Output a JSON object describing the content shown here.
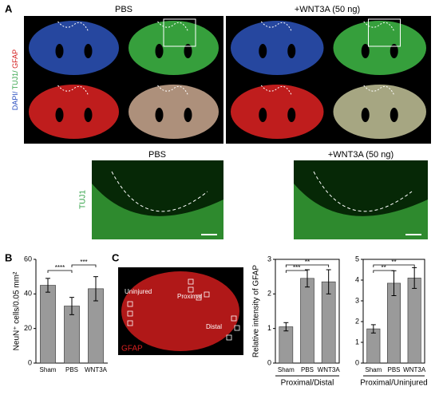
{
  "panel_a": {
    "label": "A",
    "titles": [
      "PBS",
      "+WNT3A (50 ng)"
    ],
    "stain_parts": [
      "DAPI/ ",
      "TUJ1/ ",
      "GFAP"
    ]
  },
  "panel_a_zoom": {
    "titles": [
      "PBS",
      "+WNT3A (50 ng)"
    ],
    "stain": "TUJ1"
  },
  "panel_b": {
    "label": "B"
  },
  "panel_c": {
    "label": "C",
    "stain": "GFAP",
    "regions": [
      "Uninjured",
      "Proximal",
      "Distal"
    ]
  },
  "chart_data": [
    {
      "type": "bar",
      "ylabel": "NeuN⁺ cells/0.05 mm²",
      "categories": [
        "Sham",
        "PBS",
        "WNT3A"
      ],
      "values": [
        45,
        33,
        43
      ],
      "errors": [
        4,
        5,
        7
      ],
      "color": "#9a9a9a",
      "ylim": [
        0,
        60
      ],
      "yticks": [
        0,
        20,
        40,
        60
      ],
      "significance": [
        {
          "pair": [
            0,
            1
          ],
          "label": "****"
        },
        {
          "pair": [
            1,
            2
          ],
          "label": "***"
        }
      ]
    },
    {
      "type": "bar",
      "ylabel": "Relative intensity of GFAP",
      "xlabel": "Proximal/Distal",
      "categories": [
        "Sham",
        "PBS",
        "WNT3A"
      ],
      "values": [
        1.05,
        2.45,
        2.35
      ],
      "errors": [
        0.12,
        0.25,
        0.35
      ],
      "color": "#9a9a9a",
      "ylim": [
        0,
        3
      ],
      "yticks": [
        0,
        1,
        2,
        3
      ],
      "significance": [
        {
          "pair": [
            0,
            1
          ],
          "label": "***"
        },
        {
          "pair": [
            0,
            2
          ],
          "label": "**"
        }
      ]
    },
    {
      "type": "bar",
      "xlabel": "Proximal/Uninjured",
      "categories": [
        "Sham",
        "PBS",
        "WNT3A"
      ],
      "values": [
        1.65,
        3.85,
        4.1
      ],
      "errors": [
        0.2,
        0.6,
        0.5
      ],
      "color": "#9a9a9a",
      "ylim": [
        0,
        5
      ],
      "yticks": [
        0,
        1,
        2,
        3,
        4,
        5
      ],
      "significance": [
        {
          "pair": [
            0,
            1
          ],
          "label": "**"
        },
        {
          "pair": [
            0,
            2
          ],
          "label": "**"
        }
      ]
    }
  ]
}
